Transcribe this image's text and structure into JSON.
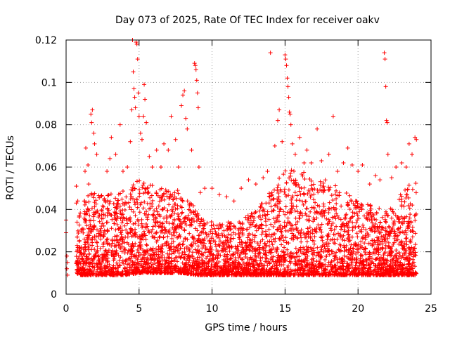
{
  "chart_data": {
    "type": "scatter",
    "title": "Day 073 of 2025, Rate Of TEC Index for receiver oakv",
    "xlabel": "GPS time / hours",
    "ylabel": "ROTI / TECUs",
    "xlim": [
      0,
      25
    ],
    "ylim": [
      0,
      0.12
    ],
    "x_ticks": [
      0,
      5,
      10,
      15,
      20,
      25
    ],
    "x_tick_labels": [
      "0",
      "5",
      "10",
      "15",
      "20",
      "25"
    ],
    "y_ticks": [
      0,
      0.02,
      0.04,
      0.06,
      0.08,
      0.1,
      0.12
    ],
    "y_tick_labels": [
      "0",
      "0.02",
      "0.04",
      "0.06",
      "0.08",
      "0.1",
      "0.12"
    ],
    "grid": true,
    "marker": "+",
    "series_color": "#ff0000",
    "series": [
      {
        "name": "ROTI",
        "points": [
          [
            0.0,
            0.035
          ],
          [
            0.0,
            0.029
          ],
          [
            0.05,
            0.018
          ],
          [
            0.05,
            0.012
          ],
          [
            0.1,
            0.009
          ],
          [
            0.1,
            0.015
          ],
          [
            0.7,
            0.043
          ],
          [
            0.7,
            0.051
          ],
          [
            0.75,
            0.034
          ],
          [
            0.8,
            0.044
          ],
          [
            1.3,
            0.058
          ],
          [
            1.35,
            0.069
          ],
          [
            1.5,
            0.061
          ],
          [
            1.55,
            0.052
          ],
          [
            1.7,
            0.085
          ],
          [
            1.75,
            0.081
          ],
          [
            1.8,
            0.087
          ],
          [
            1.9,
            0.076
          ],
          [
            1.95,
            0.071
          ],
          [
            2.1,
            0.066
          ],
          [
            2.8,
            0.058
          ],
          [
            3.0,
            0.064
          ],
          [
            3.1,
            0.074
          ],
          [
            3.4,
            0.066
          ],
          [
            3.7,
            0.08
          ],
          [
            3.9,
            0.058
          ],
          [
            4.2,
            0.06
          ],
          [
            4.4,
            0.072
          ],
          [
            4.5,
            0.087
          ],
          [
            4.55,
            0.12
          ],
          [
            4.6,
            0.105
          ],
          [
            4.65,
            0.097
          ],
          [
            4.7,
            0.093
          ],
          [
            4.75,
            0.088
          ],
          [
            4.8,
            0.119
          ],
          [
            4.85,
            0.118
          ],
          [
            4.9,
            0.111
          ],
          [
            4.95,
            0.095
          ],
          [
            5.0,
            0.084
          ],
          [
            5.1,
            0.076
          ],
          [
            5.2,
            0.073
          ],
          [
            5.3,
            0.084
          ],
          [
            5.35,
            0.099
          ],
          [
            5.4,
            0.092
          ],
          [
            5.5,
            0.081
          ],
          [
            5.7,
            0.065
          ],
          [
            5.9,
            0.06
          ],
          [
            6.2,
            0.068
          ],
          [
            6.5,
            0.06
          ],
          [
            6.7,
            0.071
          ],
          [
            7.0,
            0.068
          ],
          [
            7.2,
            0.084
          ],
          [
            7.5,
            0.073
          ],
          [
            7.7,
            0.06
          ],
          [
            7.9,
            0.089
          ],
          [
            8.0,
            0.094
          ],
          [
            8.1,
            0.096
          ],
          [
            8.2,
            0.083
          ],
          [
            8.3,
            0.078
          ],
          [
            8.6,
            0.068
          ],
          [
            8.8,
            0.109
          ],
          [
            8.85,
            0.108
          ],
          [
            8.9,
            0.106
          ],
          [
            8.95,
            0.101
          ],
          [
            9.0,
            0.095
          ],
          [
            9.05,
            0.088
          ],
          [
            9.1,
            0.06
          ],
          [
            9.2,
            0.048
          ],
          [
            9.5,
            0.05
          ],
          [
            10.0,
            0.05
          ],
          [
            10.5,
            0.047
          ],
          [
            11.0,
            0.046
          ],
          [
            11.5,
            0.044
          ],
          [
            12.0,
            0.05
          ],
          [
            12.5,
            0.054
          ],
          [
            13.0,
            0.052
          ],
          [
            13.5,
            0.055
          ],
          [
            13.8,
            0.058
          ],
          [
            14.0,
            0.114
          ],
          [
            14.3,
            0.07
          ],
          [
            14.5,
            0.082
          ],
          [
            14.6,
            0.087
          ],
          [
            14.8,
            0.072
          ],
          [
            15.0,
            0.113
          ],
          [
            15.05,
            0.111
          ],
          [
            15.1,
            0.108
          ],
          [
            15.15,
            0.102
          ],
          [
            15.2,
            0.098
          ],
          [
            15.25,
            0.093
          ],
          [
            15.3,
            0.086
          ],
          [
            15.35,
            0.085
          ],
          [
            15.4,
            0.08
          ],
          [
            15.5,
            0.071
          ],
          [
            15.7,
            0.066
          ],
          [
            16.0,
            0.074
          ],
          [
            16.3,
            0.062
          ],
          [
            16.5,
            0.068
          ],
          [
            16.8,
            0.062
          ],
          [
            17.2,
            0.078
          ],
          [
            17.5,
            0.063
          ],
          [
            18.0,
            0.066
          ],
          [
            18.3,
            0.084
          ],
          [
            18.6,
            0.058
          ],
          [
            19.0,
            0.062
          ],
          [
            19.3,
            0.069
          ],
          [
            19.6,
            0.061
          ],
          [
            20.0,
            0.058
          ],
          [
            20.3,
            0.061
          ],
          [
            20.8,
            0.052
          ],
          [
            21.2,
            0.056
          ],
          [
            21.5,
            0.054
          ],
          [
            21.8,
            0.114
          ],
          [
            21.85,
            0.111
          ],
          [
            21.9,
            0.098
          ],
          [
            21.95,
            0.082
          ],
          [
            22.0,
            0.081
          ],
          [
            22.05,
            0.066
          ],
          [
            22.3,
            0.055
          ],
          [
            22.6,
            0.06
          ],
          [
            23.0,
            0.062
          ],
          [
            23.3,
            0.06
          ],
          [
            23.5,
            0.071
          ],
          [
            23.7,
            0.066
          ],
          [
            23.9,
            0.074
          ],
          [
            24.0,
            0.073
          ]
        ],
        "density_profile": {
          "description": "Dense band of ROTI samples; per-hour typical lower and upper envelope (TECUs)",
          "hours": [
            0.7,
            1,
            2,
            3,
            4,
            5,
            6,
            7,
            8,
            9,
            10,
            11,
            12,
            13,
            14,
            15,
            16,
            17,
            18,
            19,
            20,
            21,
            22,
            23,
            24
          ],
          "low": [
            0.006,
            0.005,
            0.005,
            0.005,
            0.005,
            0.006,
            0.006,
            0.006,
            0.006,
            0.005,
            0.005,
            0.005,
            0.005,
            0.005,
            0.005,
            0.005,
            0.005,
            0.005,
            0.005,
            0.005,
            0.005,
            0.005,
            0.005,
            0.005,
            0.005
          ],
          "high": [
            0.03,
            0.04,
            0.045,
            0.045,
            0.045,
            0.05,
            0.048,
            0.045,
            0.045,
            0.035,
            0.03,
            0.03,
            0.032,
            0.035,
            0.045,
            0.055,
            0.055,
            0.05,
            0.05,
            0.045,
            0.04,
            0.038,
            0.035,
            0.045,
            0.05
          ]
        }
      }
    ]
  }
}
